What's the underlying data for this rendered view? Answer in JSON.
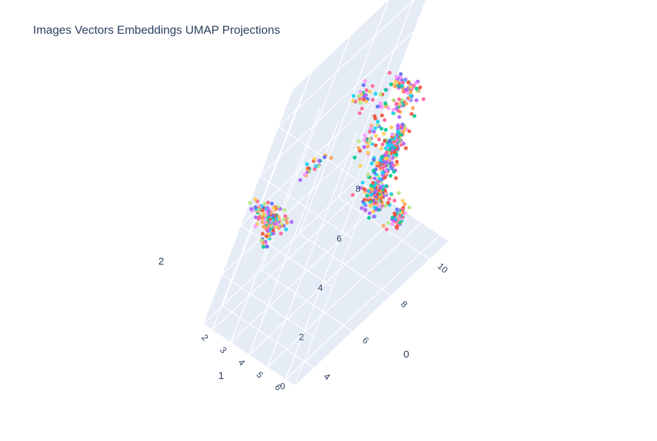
{
  "chart_data": {
    "type": "scatter",
    "title": "Images Vectors Embeddings UMAP Projections",
    "axes": {
      "x": {
        "title": "0",
        "ticks": [
          "4",
          "6",
          "8",
          "10"
        ]
      },
      "y": {
        "title": "1",
        "ticks": [
          "2",
          "3",
          "4",
          "5",
          "6"
        ]
      },
      "z": {
        "title": "2",
        "ticks": [
          "0",
          "2",
          "4",
          "6",
          "8"
        ]
      }
    },
    "grid": true,
    "legend": "none",
    "colors": [
      "#636efa",
      "#ef553b",
      "#00cc96",
      "#ab63fa",
      "#ffa15a",
      "#19d3f3",
      "#ff6692",
      "#b6e880",
      "#ff97ff",
      "#fecb52"
    ],
    "clusters": [
      {
        "x": 3.6,
        "y": 2.3,
        "z": 4.3,
        "n": 110,
        "spread": [
          0.22,
          0.9,
          0.4
        ]
      },
      {
        "x": 3.4,
        "y": 2.6,
        "z": 4.0,
        "n": 40,
        "spread": [
          0.3,
          0.3,
          0.5
        ]
      },
      {
        "x": 5.6,
        "y": 4.6,
        "z": 8.6,
        "n": 30,
        "spread": [
          0.15,
          0.9,
          0.3
        ]
      },
      {
        "x": 5.3,
        "y": 5.3,
        "z": 9.3,
        "n": 22,
        "spread": [
          0.2,
          0.2,
          0.6
        ]
      },
      {
        "x": 9.0,
        "y": 3.0,
        "z": 6.0,
        "n": 50,
        "spread": [
          0.2,
          0.9,
          0.25
        ]
      },
      {
        "x": 8.9,
        "y": 2.5,
        "z": 4.0,
        "n": 40,
        "spread": [
          0.3,
          0.3,
          1.3
        ]
      },
      {
        "x": 7.2,
        "y": 4.5,
        "z": 5.2,
        "n": 140,
        "spread": [
          0.4,
          0.5,
          0.9
        ]
      },
      {
        "x": 7.0,
        "y": 4.7,
        "z": 3.9,
        "n": 140,
        "spread": [
          0.6,
          0.6,
          0.5
        ]
      },
      {
        "x": 8.2,
        "y": 5.4,
        "z": 2.5,
        "n": 60,
        "spread": [
          0.3,
          0.3,
          0.35
        ]
      },
      {
        "x": 6.8,
        "y": 2.6,
        "z": 7.0,
        "n": 25,
        "spread": [
          0.3,
          0.3,
          0.6
        ]
      },
      {
        "x": 4.7,
        "y": 2.8,
        "z": 5.7,
        "n": 20,
        "spread": [
          0.7,
          0.3,
          0.3
        ]
      },
      {
        "x": 6.4,
        "y": 5.0,
        "z": 6.7,
        "n": 80,
        "spread": [
          0.3,
          0.25,
          0.6
        ]
      }
    ]
  }
}
